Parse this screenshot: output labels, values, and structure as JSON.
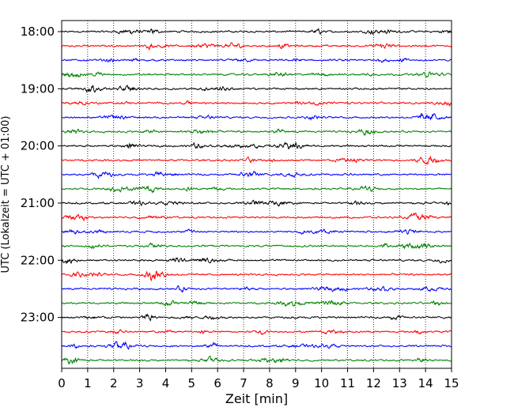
{
  "chart_data": {
    "type": "line",
    "title": "",
    "xlabel": "Zeit  [min]",
    "ylabel": "UTC (Lokalzeit = UTC + 01:00)",
    "xlim": [
      0,
      15
    ],
    "x_ticks": [
      0,
      1,
      2,
      3,
      4,
      5,
      6,
      7,
      8,
      9,
      10,
      11,
      12,
      13,
      14,
      15
    ],
    "x_tick_labels": [
      "0",
      "1",
      "2",
      "3",
      "4",
      "5",
      "6",
      "7",
      "8",
      "9",
      "10",
      "11",
      "12",
      "13",
      "14",
      "15"
    ],
    "y_tick_labels": [
      "18:00",
      "19:00",
      "20:00",
      "21:00",
      "22:00",
      "23:00"
    ],
    "trace_interval_minutes": 15,
    "start_time": "18:00",
    "trace_count": 24,
    "trace_colors": [
      "#000000",
      "#ff0000",
      "#0000ff",
      "#008000"
    ],
    "vertical_grid": "dotted",
    "horizontal_grid": "none",
    "legend": "none"
  }
}
